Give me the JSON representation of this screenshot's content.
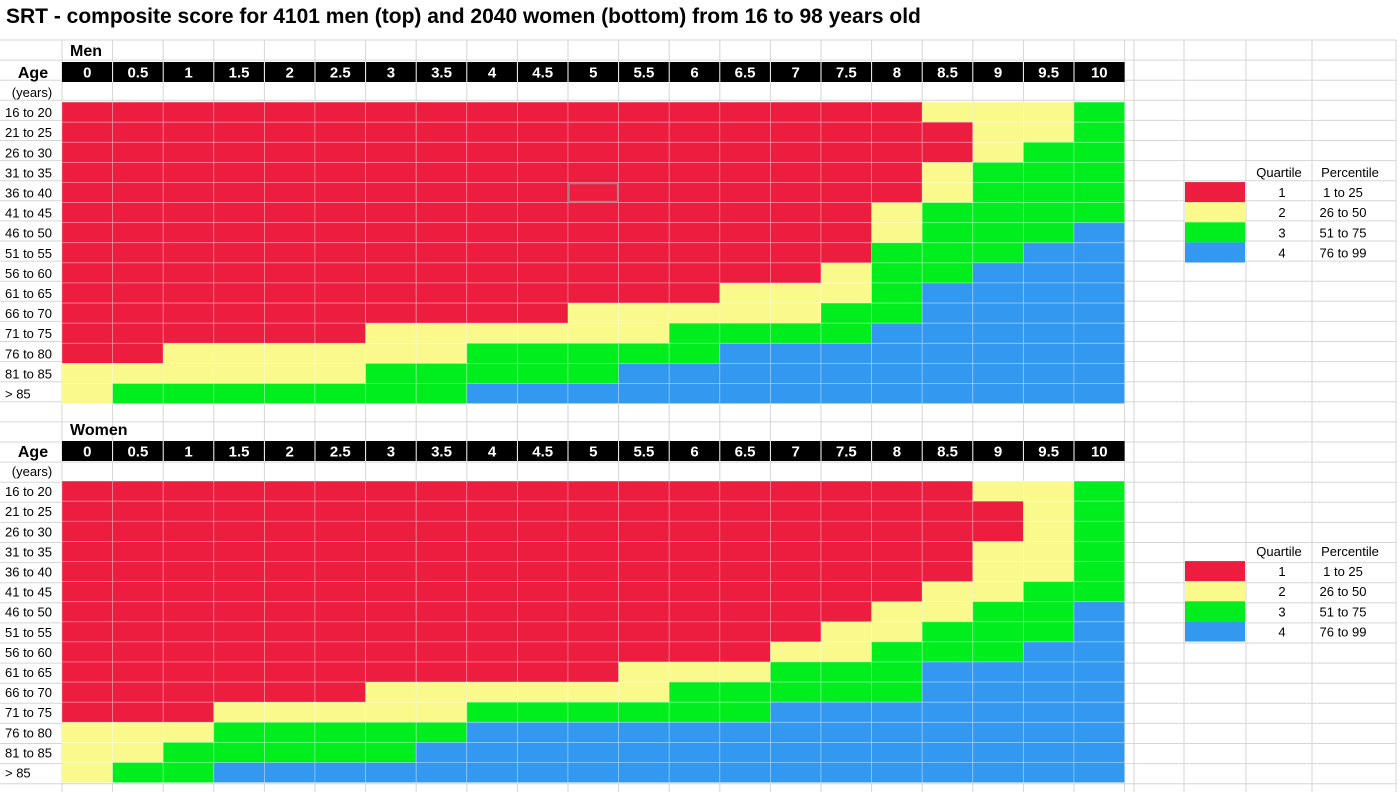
{
  "title": "SRT - composite score for 4101 men (top) and 2040 women (bottom) from 16 to 98 years old",
  "colors": {
    "q1": "#ec1d3f",
    "q2": "#f9f98c",
    "q3": "#00ee1e",
    "q4": "#3399f0",
    "header_bg": "#000000",
    "grid": "#d6d6d6"
  },
  "chart_data": [
    {
      "type": "heatmap",
      "title": "Men",
      "xlabel": "Age",
      "ylabel": "(years)",
      "x": [
        "0",
        "0.5",
        "1",
        "1.5",
        "2",
        "2.5",
        "3",
        "3.5",
        "4",
        "4.5",
        "5",
        "5.5",
        "6",
        "6.5",
        "7",
        "7.5",
        "8",
        "8.5",
        "9",
        "9.5",
        "10"
      ],
      "y": [
        "16 to 20",
        "21 to 25",
        "26 to 30",
        "31 to 35",
        "36 to 40",
        "41 to 45",
        "46 to 50",
        "51 to 55",
        "56 to 60",
        "61 to 65",
        "66 to 70",
        "71 to 75",
        "76 to 80",
        "81 to 85",
        "> 85"
      ],
      "quartiles": [
        [
          1,
          1,
          1,
          1,
          1,
          1,
          1,
          1,
          1,
          1,
          1,
          1,
          1,
          1,
          1,
          1,
          1,
          2,
          2,
          2,
          3
        ],
        [
          1,
          1,
          1,
          1,
          1,
          1,
          1,
          1,
          1,
          1,
          1,
          1,
          1,
          1,
          1,
          1,
          1,
          1,
          2,
          2,
          3
        ],
        [
          1,
          1,
          1,
          1,
          1,
          1,
          1,
          1,
          1,
          1,
          1,
          1,
          1,
          1,
          1,
          1,
          1,
          1,
          2,
          3,
          3
        ],
        [
          1,
          1,
          1,
          1,
          1,
          1,
          1,
          1,
          1,
          1,
          1,
          1,
          1,
          1,
          1,
          1,
          1,
          2,
          3,
          3,
          3
        ],
        [
          1,
          1,
          1,
          1,
          1,
          1,
          1,
          1,
          1,
          1,
          1,
          1,
          1,
          1,
          1,
          1,
          1,
          2,
          3,
          3,
          3
        ],
        [
          1,
          1,
          1,
          1,
          1,
          1,
          1,
          1,
          1,
          1,
          1,
          1,
          1,
          1,
          1,
          1,
          2,
          3,
          3,
          3,
          3
        ],
        [
          1,
          1,
          1,
          1,
          1,
          1,
          1,
          1,
          1,
          1,
          1,
          1,
          1,
          1,
          1,
          1,
          2,
          3,
          3,
          3,
          4
        ],
        [
          1,
          1,
          1,
          1,
          1,
          1,
          1,
          1,
          1,
          1,
          1,
          1,
          1,
          1,
          1,
          1,
          3,
          3,
          3,
          4,
          4
        ],
        [
          1,
          1,
          1,
          1,
          1,
          1,
          1,
          1,
          1,
          1,
          1,
          1,
          1,
          1,
          1,
          2,
          3,
          3,
          4,
          4,
          4
        ],
        [
          1,
          1,
          1,
          1,
          1,
          1,
          1,
          1,
          1,
          1,
          1,
          1,
          1,
          2,
          2,
          2,
          3,
          4,
          4,
          4,
          4
        ],
        [
          1,
          1,
          1,
          1,
          1,
          1,
          1,
          1,
          1,
          1,
          2,
          2,
          2,
          2,
          2,
          3,
          3,
          4,
          4,
          4,
          4
        ],
        [
          1,
          1,
          1,
          1,
          1,
          1,
          2,
          2,
          2,
          2,
          2,
          2,
          3,
          3,
          3,
          3,
          4,
          4,
          4,
          4,
          4
        ],
        [
          1,
          1,
          2,
          2,
          2,
          2,
          2,
          2,
          3,
          3,
          3,
          3,
          3,
          4,
          4,
          4,
          4,
          4,
          4,
          4,
          4
        ],
        [
          2,
          2,
          2,
          2,
          2,
          2,
          3,
          3,
          3,
          3,
          3,
          4,
          4,
          4,
          4,
          4,
          4,
          4,
          4,
          4,
          4
        ],
        [
          2,
          3,
          3,
          3,
          3,
          3,
          3,
          3,
          4,
          4,
          4,
          4,
          4,
          4,
          4,
          4,
          4,
          4,
          4,
          4,
          4
        ]
      ],
      "legend": {
        "headers": [
          "Quartile",
          "Percentile"
        ],
        "entries": [
          {
            "quartile": "1",
            "percentile": "1 to 25"
          },
          {
            "quartile": "2",
            "percentile": "26 to 50"
          },
          {
            "quartile": "3",
            "percentile": "51 to 75"
          },
          {
            "quartile": "4",
            "percentile": "76 to 99"
          }
        ]
      }
    },
    {
      "type": "heatmap",
      "title": "Women",
      "xlabel": "Age",
      "ylabel": "(years)",
      "x": [
        "0",
        "0.5",
        "1",
        "1.5",
        "2",
        "2.5",
        "3",
        "3.5",
        "4",
        "4.5",
        "5",
        "5.5",
        "6",
        "6.5",
        "7",
        "7.5",
        "8",
        "8.5",
        "9",
        "9.5",
        "10"
      ],
      "y": [
        "16 to 20",
        "21 to 25",
        "26 to 30",
        "31 to 35",
        "36 to 40",
        "41 to 45",
        "46 to 50",
        "51 to 55",
        "56 to 60",
        "61 to 65",
        "66 to 70",
        "71 to 75",
        "76 to 80",
        "81 to 85",
        "> 85"
      ],
      "quartiles": [
        [
          1,
          1,
          1,
          1,
          1,
          1,
          1,
          1,
          1,
          1,
          1,
          1,
          1,
          1,
          1,
          1,
          1,
          1,
          2,
          2,
          3
        ],
        [
          1,
          1,
          1,
          1,
          1,
          1,
          1,
          1,
          1,
          1,
          1,
          1,
          1,
          1,
          1,
          1,
          1,
          1,
          1,
          2,
          3
        ],
        [
          1,
          1,
          1,
          1,
          1,
          1,
          1,
          1,
          1,
          1,
          1,
          1,
          1,
          1,
          1,
          1,
          1,
          1,
          1,
          2,
          3
        ],
        [
          1,
          1,
          1,
          1,
          1,
          1,
          1,
          1,
          1,
          1,
          1,
          1,
          1,
          1,
          1,
          1,
          1,
          1,
          2,
          2,
          3
        ],
        [
          1,
          1,
          1,
          1,
          1,
          1,
          1,
          1,
          1,
          1,
          1,
          1,
          1,
          1,
          1,
          1,
          1,
          1,
          2,
          2,
          3
        ],
        [
          1,
          1,
          1,
          1,
          1,
          1,
          1,
          1,
          1,
          1,
          1,
          1,
          1,
          1,
          1,
          1,
          1,
          2,
          2,
          3,
          3
        ],
        [
          1,
          1,
          1,
          1,
          1,
          1,
          1,
          1,
          1,
          1,
          1,
          1,
          1,
          1,
          1,
          1,
          2,
          2,
          3,
          3,
          4
        ],
        [
          1,
          1,
          1,
          1,
          1,
          1,
          1,
          1,
          1,
          1,
          1,
          1,
          1,
          1,
          1,
          2,
          2,
          3,
          3,
          3,
          4
        ],
        [
          1,
          1,
          1,
          1,
          1,
          1,
          1,
          1,
          1,
          1,
          1,
          1,
          1,
          1,
          2,
          2,
          3,
          3,
          3,
          4,
          4
        ],
        [
          1,
          1,
          1,
          1,
          1,
          1,
          1,
          1,
          1,
          1,
          1,
          2,
          2,
          2,
          3,
          3,
          3,
          4,
          4,
          4,
          4
        ],
        [
          1,
          1,
          1,
          1,
          1,
          1,
          2,
          2,
          2,
          2,
          2,
          2,
          3,
          3,
          3,
          3,
          3,
          4,
          4,
          4,
          4
        ],
        [
          1,
          1,
          1,
          2,
          2,
          2,
          2,
          2,
          3,
          3,
          3,
          3,
          3,
          3,
          4,
          4,
          4,
          4,
          4,
          4,
          4
        ],
        [
          2,
          2,
          2,
          3,
          3,
          3,
          3,
          3,
          4,
          4,
          4,
          4,
          4,
          4,
          4,
          4,
          4,
          4,
          4,
          4,
          4
        ],
        [
          2,
          2,
          3,
          3,
          3,
          3,
          3,
          4,
          4,
          4,
          4,
          4,
          4,
          4,
          4,
          4,
          4,
          4,
          4,
          4,
          4
        ],
        [
          2,
          3,
          3,
          4,
          4,
          4,
          4,
          4,
          4,
          4,
          4,
          4,
          4,
          4,
          4,
          4,
          4,
          4,
          4,
          4,
          4
        ]
      ],
      "legend": {
        "headers": [
          "Quartile",
          "Percentile"
        ],
        "entries": [
          {
            "quartile": "1",
            "percentile": "1 to 25"
          },
          {
            "quartile": "2",
            "percentile": "26 to 50"
          },
          {
            "quartile": "3",
            "percentile": "51 to 75"
          },
          {
            "quartile": "4",
            "percentile": "76 to 99"
          }
        ]
      }
    }
  ]
}
